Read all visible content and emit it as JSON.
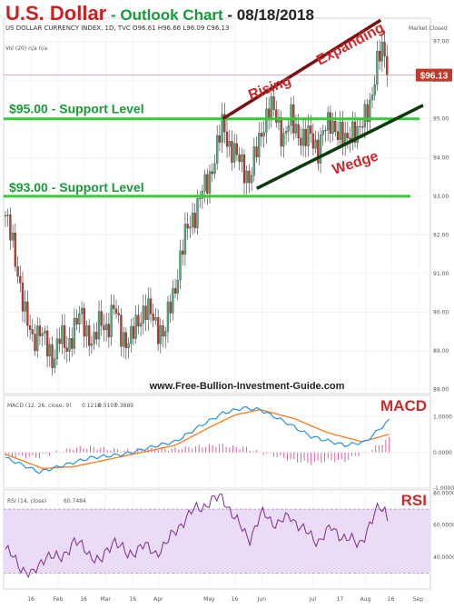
{
  "title": {
    "instrument": "U.S. Dollar",
    "subtitle": " - Outlook Chart",
    "date": " - 08/18/2018"
  },
  "header": {
    "symbol": "US DOLLAR CURRENCY INDEX, 1D, TVC",
    "ohlc": "O96.61 H96.66 L96.09 C96.13",
    "market_status": "Market Closed",
    "vol_label": "Vol (20)",
    "vol_values": "n/a  n/a"
  },
  "watermark": "www.Free-Bullion-Investment-Guide.com",
  "annotations": {
    "support_95": "$95.00 - Support Level",
    "support_93": "$93.00 - Support Level",
    "rising": "Rising",
    "expanding": "Expanding",
    "wedge": "Wedge",
    "price_tag": "$96.13"
  },
  "colors": {
    "up": "#4caf7a",
    "down": "#c0392b",
    "support": "#33cc33",
    "upper_trend": "#7a1010",
    "lower_trend": "#0c3a0c",
    "macd": "#3399dd",
    "signal": "#ff7a1a",
    "hist": "#e060a0",
    "rsi": "#7b2d8b",
    "rsi_band": "#eadcf6",
    "label_red": "#cc2a2a"
  },
  "chart_data": [
    {
      "type": "candlestick",
      "ylim": [
        87.9,
        97.6
      ],
      "yticks": [
        "97.00",
        "96.00",
        "95.00",
        "94.00",
        "93.00",
        "92.00",
        "91.00",
        "90.00",
        "89.00",
        "88.00"
      ],
      "ytick_values": [
        97,
        96,
        95,
        94,
        93,
        92,
        91,
        90,
        89,
        88
      ],
      "xticks": [
        "16",
        "Feb",
        "16",
        "Mar",
        "16",
        "Apr",
        "May",
        "16",
        "Jun",
        "Jul",
        "17",
        "Aug",
        "16",
        "Sep"
      ],
      "xtick_days": [
        15,
        31,
        46,
        59,
        75,
        90,
        120,
        135,
        151,
        181,
        197,
        212,
        227,
        243
      ],
      "x_range_days": [
        0,
        246
      ],
      "support_levels": [
        95,
        93
      ],
      "last_price": 96.13,
      "trendlines": [
        {
          "name": "upper",
          "from": [
            128,
            95.0
          ],
          "to": [
            221,
            97.55
          ]
        },
        {
          "name": "lower",
          "from": [
            148,
            93.2
          ],
          "to": [
            246,
            95.35
          ]
        }
      ],
      "anchors": [
        [
          0,
          92.5
        ],
        [
          4,
          91.8
        ],
        [
          8,
          90.9
        ],
        [
          12,
          89.8
        ],
        [
          16,
          89.3
        ],
        [
          20,
          89.6
        ],
        [
          24,
          89.1
        ],
        [
          28,
          88.8
        ],
        [
          32,
          89.4
        ],
        [
          36,
          89.0
        ],
        [
          40,
          89.6
        ],
        [
          44,
          89.9
        ],
        [
          48,
          89.5
        ],
        [
          52,
          89.2
        ],
        [
          56,
          89.8
        ],
        [
          60,
          89.6
        ],
        [
          64,
          90.1
        ],
        [
          68,
          89.5
        ],
        [
          72,
          89.2
        ],
        [
          74,
          89.3
        ],
        [
          78,
          89.8
        ],
        [
          82,
          90.1
        ],
        [
          86,
          89.9
        ],
        [
          90,
          89.6
        ],
        [
          94,
          89.4
        ],
        [
          96,
          90.0
        ],
        [
          100,
          90.7
        ],
        [
          104,
          91.6
        ],
        [
          108,
          92.3
        ],
        [
          112,
          92.6
        ],
        [
          116,
          93.1
        ],
        [
          120,
          93.5
        ],
        [
          124,
          94.1
        ],
        [
          128,
          94.9
        ],
        [
          132,
          94.3
        ],
        [
          136,
          94.0
        ],
        [
          140,
          93.8
        ],
        [
          144,
          93.4
        ],
        [
          148,
          94.2
        ],
        [
          152,
          94.9
        ],
        [
          156,
          95.3
        ],
        [
          160,
          95.0
        ],
        [
          164,
          94.5
        ],
        [
          168,
          95.0
        ],
        [
          172,
          94.7
        ],
        [
          176,
          94.4
        ],
        [
          180,
          94.6
        ],
        [
          184,
          94.2
        ],
        [
          188,
          94.7
        ],
        [
          192,
          95.0
        ],
        [
          196,
          94.6
        ],
        [
          200,
          94.4
        ],
        [
          204,
          94.8
        ],
        [
          208,
          94.5
        ],
        [
          212,
          95.2
        ],
        [
          216,
          95.6
        ],
        [
          220,
          96.6
        ],
        [
          222,
          96.9
        ],
        [
          224,
          96.61
        ],
        [
          226,
          96.13
        ]
      ]
    },
    {
      "type": "line",
      "title": "MACD",
      "legend": "MACD (12, 26, close, 9)",
      "series_values": [
        "0.1218",
        "0.5107",
        "0.3889"
      ],
      "ylim": [
        -1.0,
        1.6
      ],
      "yticks": [
        "1.0000",
        "0.0000",
        "-1.0000"
      ],
      "ytick_values": [
        1,
        0,
        -1
      ],
      "macd_anchors": [
        [
          0,
          -0.15
        ],
        [
          20,
          -0.55
        ],
        [
          35,
          -0.35
        ],
        [
          50,
          -0.15
        ],
        [
          70,
          -0.05
        ],
        [
          90,
          0.2
        ],
        [
          100,
          0.3
        ],
        [
          115,
          0.75
        ],
        [
          128,
          1.1
        ],
        [
          140,
          1.25
        ],
        [
          150,
          1.2
        ],
        [
          165,
          0.85
        ],
        [
          180,
          0.45
        ],
        [
          200,
          0.2
        ],
        [
          212,
          0.3
        ],
        [
          226,
          0.9
        ]
      ],
      "signal_anchors": [
        [
          0,
          -0.05
        ],
        [
          22,
          -0.45
        ],
        [
          40,
          -0.4
        ],
        [
          60,
          -0.2
        ],
        [
          80,
          0.0
        ],
        [
          100,
          0.2
        ],
        [
          120,
          0.7
        ],
        [
          135,
          1.05
        ],
        [
          150,
          1.2
        ],
        [
          170,
          0.95
        ],
        [
          190,
          0.55
        ],
        [
          210,
          0.3
        ],
        [
          226,
          0.51
        ]
      ]
    },
    {
      "type": "line",
      "title": "RSI",
      "legend": "RSI (14, close)",
      "value": "60.7484",
      "ylim": [
        20,
        82
      ],
      "band": [
        30,
        70
      ],
      "yticks": [
        "80.0000",
        "60.0000",
        "40.0000"
      ],
      "ytick_values": [
        80,
        60,
        40
      ],
      "anchors": [
        [
          0,
          45
        ],
        [
          8,
          35
        ],
        [
          16,
          28
        ],
        [
          24,
          42
        ],
        [
          32,
          38
        ],
        [
          40,
          50
        ],
        [
          48,
          44
        ],
        [
          56,
          36
        ],
        [
          64,
          52
        ],
        [
          72,
          40
        ],
        [
          80,
          48
        ],
        [
          88,
          42
        ],
        [
          96,
          50
        ],
        [
          104,
          62
        ],
        [
          112,
          70
        ],
        [
          120,
          74
        ],
        [
          128,
          78
        ],
        [
          136,
          62
        ],
        [
          144,
          52
        ],
        [
          152,
          68
        ],
        [
          160,
          60
        ],
        [
          168,
          66
        ],
        [
          176,
          56
        ],
        [
          184,
          50
        ],
        [
          192,
          58
        ],
        [
          200,
          52
        ],
        [
          208,
          48
        ],
        [
          216,
          62
        ],
        [
          220,
          72
        ],
        [
          224,
          70
        ],
        [
          226,
          60.7
        ]
      ]
    }
  ]
}
